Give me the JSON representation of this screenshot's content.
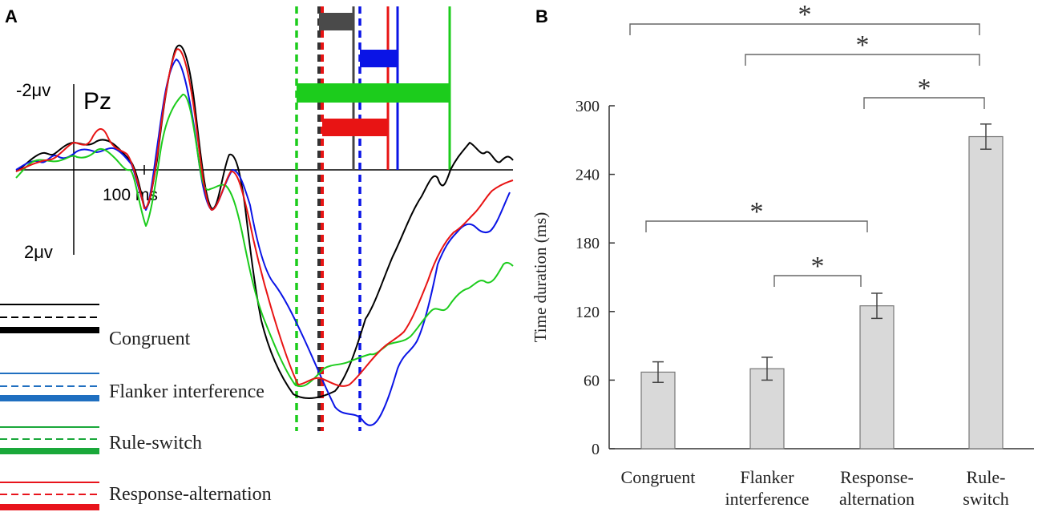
{
  "panel_a": {
    "letter": "A",
    "electrode": "Pz",
    "y_top_label": "-2μv",
    "y_bottom_label": "2μv",
    "x_scale_label": "100 ms",
    "legend": [
      {
        "label": "Congruent",
        "color": "#000000"
      },
      {
        "label": "Flanker interference",
        "color": "#1f6fc0"
      },
      {
        "label": "Rule-switch",
        "color": "#1aa83a"
      },
      {
        "label": "Response-alternation",
        "color": "#e8141c"
      }
    ]
  },
  "panel_b": {
    "letter": "B",
    "significance_marker": "*"
  },
  "colors": {
    "congruent": "#000000",
    "flanker": "#0a14e6",
    "rule_switch": "#1ccc1c",
    "response_alt": "#e81414",
    "bar_fill": "#d9d9d9"
  },
  "chart_data": [
    {
      "type": "line",
      "title": "Pz",
      "xlabel": "",
      "ylabel": "",
      "note": "ERP waveforms (negative up); segment durations shown as horizontal bars",
      "series": [
        {
          "name": "Congruent",
          "color": "#000000"
        },
        {
          "name": "Flanker interference",
          "color": "#0a14e6"
        },
        {
          "name": "Rule-switch",
          "color": "#1ccc1c"
        },
        {
          "name": "Response-alternation",
          "color": "#e81414"
        }
      ]
    },
    {
      "type": "bar",
      "categories": [
        "Congruent",
        "Flanker interference",
        "Response-alternation",
        "Rule-switch"
      ],
      "category_lines": [
        [
          "Congruent"
        ],
        [
          "Flanker",
          "interference"
        ],
        [
          "Response-",
          "alternation"
        ],
        [
          "Rule-",
          "switch"
        ]
      ],
      "values": [
        67,
        70,
        125,
        273
      ],
      "errors": [
        9,
        10,
        11,
        11
      ],
      "ylabel": "Time duration (ms)",
      "ylim": [
        0,
        300
      ],
      "yticks": [
        "0",
        "60",
        "120",
        "180",
        "240",
        "300"
      ],
      "significance": [
        {
          "from": 0,
          "to": 3,
          "label": "*"
        },
        {
          "from": 1,
          "to": 3,
          "label": "*"
        },
        {
          "from": 2,
          "to": 3,
          "label": "*"
        },
        {
          "from": 0,
          "to": 2,
          "label": "*"
        },
        {
          "from": 1,
          "to": 2,
          "label": "*"
        }
      ]
    }
  ]
}
